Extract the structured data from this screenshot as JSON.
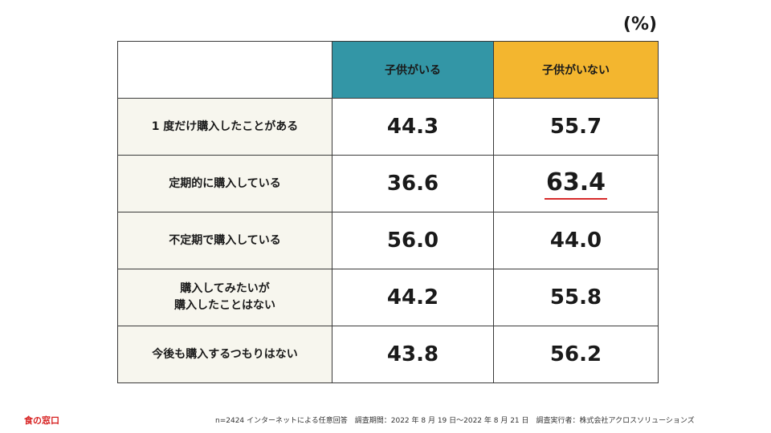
{
  "unit_label": "(%)",
  "chart_data": {
    "type": "table",
    "columns": [
      "子供がいる",
      "子供がいない"
    ],
    "rows": [
      {
        "label": "1 度だけ購入したことがある",
        "values": [
          "44.3",
          "55.7"
        ],
        "highlight": null
      },
      {
        "label": "定期的に購入している",
        "values": [
          "36.6",
          "63.4"
        ],
        "highlight": 1
      },
      {
        "label": "不定期で購入している",
        "values": [
          "56.0",
          "44.0"
        ],
        "highlight": null
      },
      {
        "label": "購入してみたいが\n購入したことはない",
        "values": [
          "44.2",
          "55.8"
        ],
        "highlight": null
      },
      {
        "label": "今後も購入するつもりはない",
        "values": [
          "43.8",
          "56.2"
        ],
        "highlight": null
      }
    ],
    "colors": {
      "col_a": "#3396a6",
      "col_b": "#f3b62f",
      "label_bg": "#f7f6ee",
      "highlight": "#d62b2b"
    }
  },
  "logo_text": "食の窓口",
  "footer_text": "n=2424 インターネットによる任意回答　調査期間：2022 年 8 月 19 日〜2022 年 8 月 21 日　調査実行者：株式会社アクロスソリューションズ"
}
